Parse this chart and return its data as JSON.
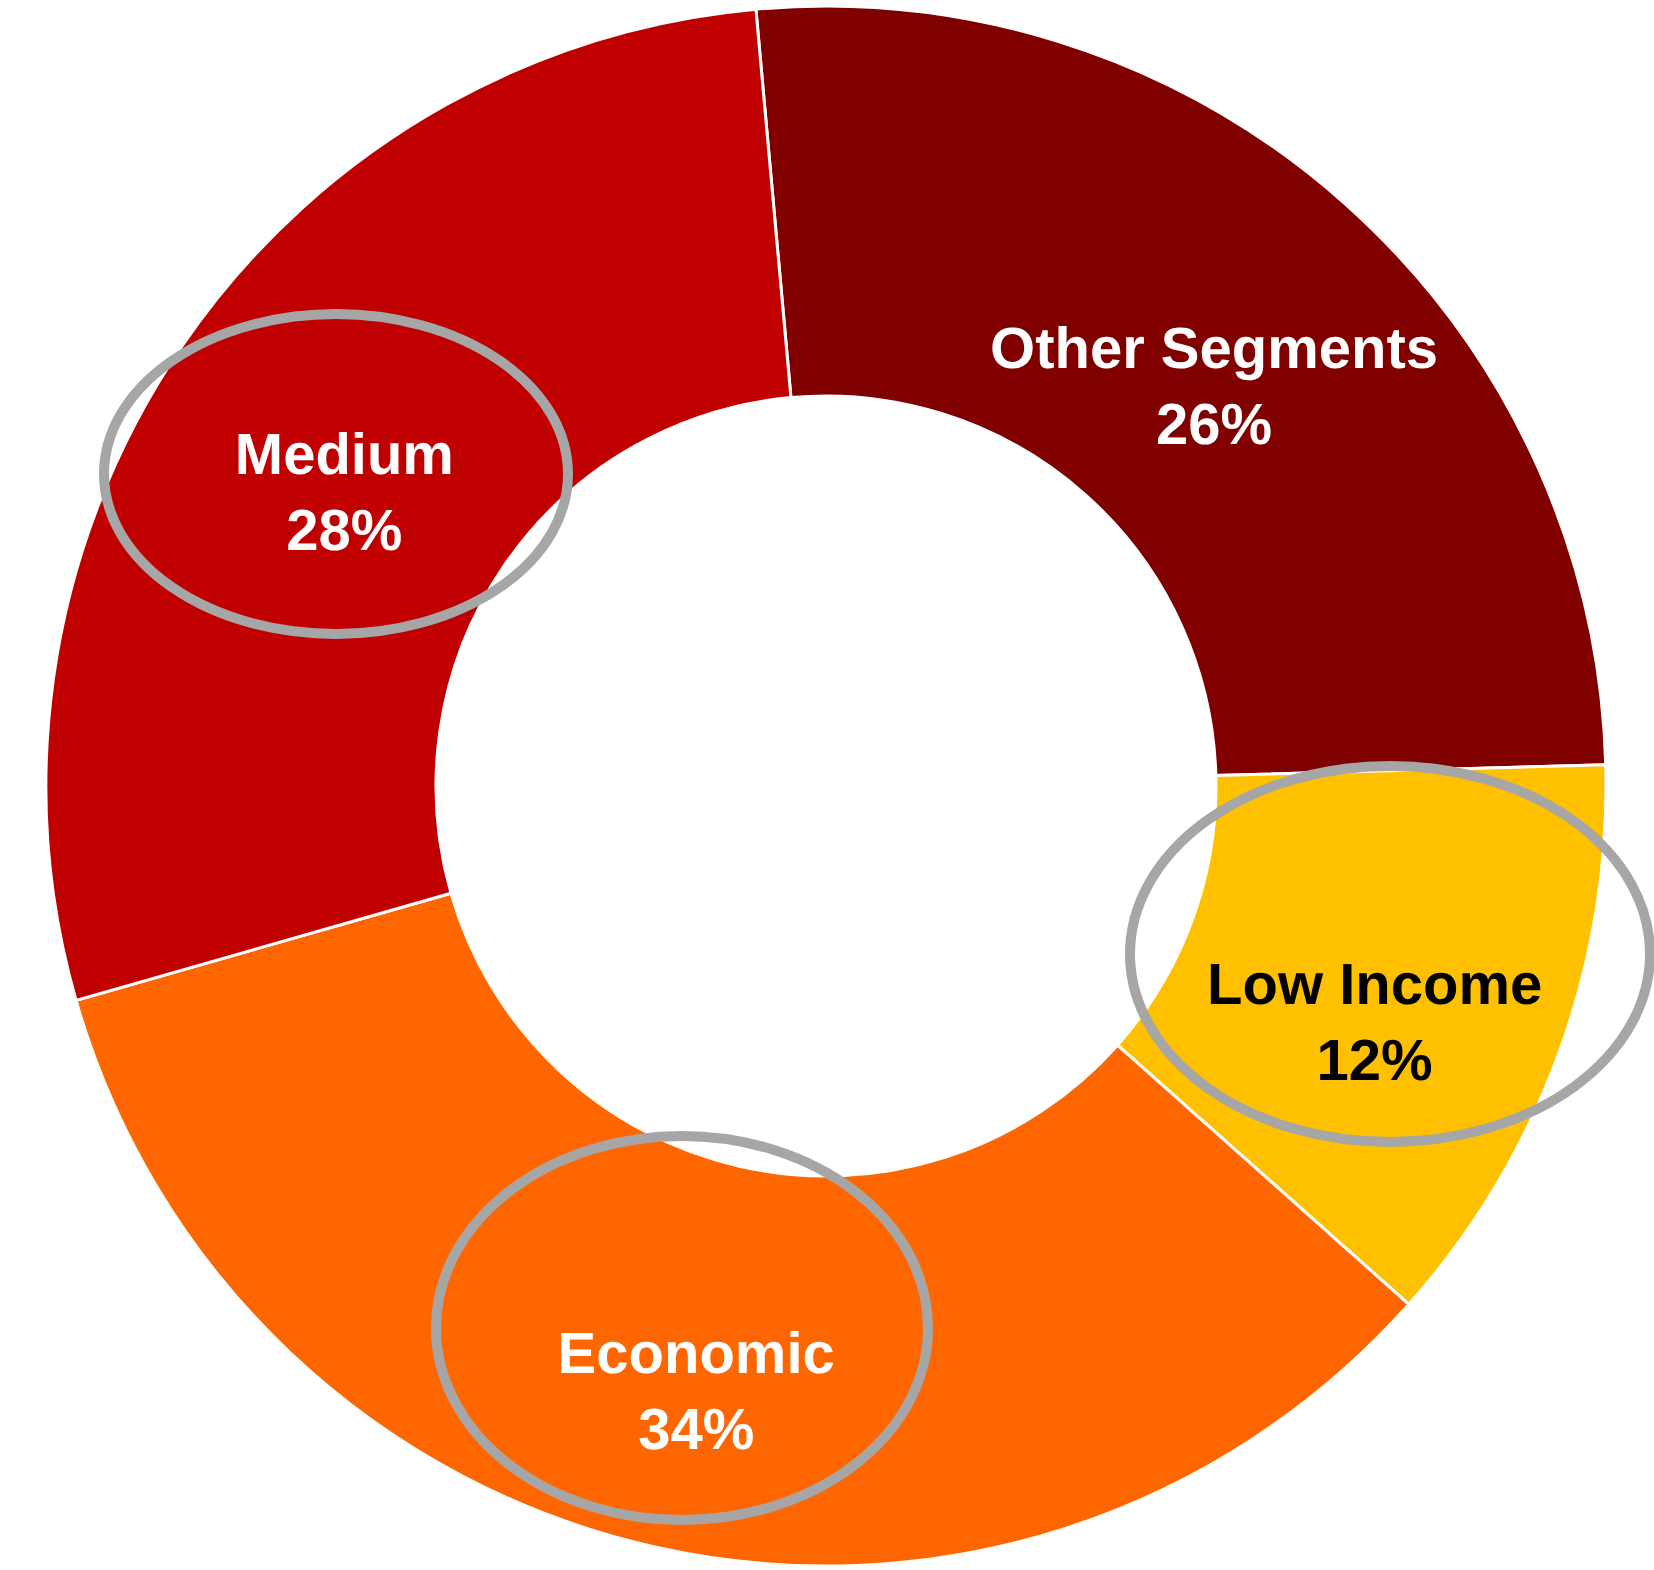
{
  "chart_data": {
    "type": "donut",
    "categories": [
      "Other Segments",
      "Low Income",
      "Economic",
      "Medium"
    ],
    "values": [
      26,
      12,
      34,
      28
    ],
    "colors": [
      "#800000",
      "#ffc000",
      "#ff6600",
      "#c00000"
    ],
    "value_labels": [
      "26%",
      "12%",
      "34%",
      "28%"
    ]
  }
}
